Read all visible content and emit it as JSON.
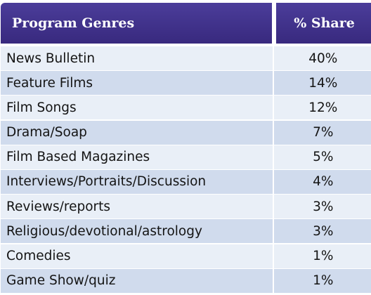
{
  "table": {
    "headers": {
      "genre": "Program Genres",
      "share": "% Share"
    },
    "rows": [
      {
        "genre": "News Bulletin",
        "share": "40%"
      },
      {
        "genre": "Feature Films",
        "share": "14%"
      },
      {
        "genre": "Film Songs",
        "share": "12%"
      },
      {
        "genre": "Drama/Soap",
        "share": "7%"
      },
      {
        "genre": "Film Based Magazines",
        "share": "5%"
      },
      {
        "genre": "Interviews/Portraits/Discussion",
        "share": "4%"
      },
      {
        "genre": "Reviews/reports",
        "share": "3%"
      },
      {
        "genre": "Religious/devotional/astrology",
        "share": "3%"
      },
      {
        "genre": "Comedies",
        "share": "1%"
      },
      {
        "genre": "Game Show/quiz",
        "share": "1%"
      }
    ]
  },
  "colors": {
    "header_bg": "#3f3089",
    "row_light": "#e9eff7",
    "row_dark": "#d0dbed"
  }
}
